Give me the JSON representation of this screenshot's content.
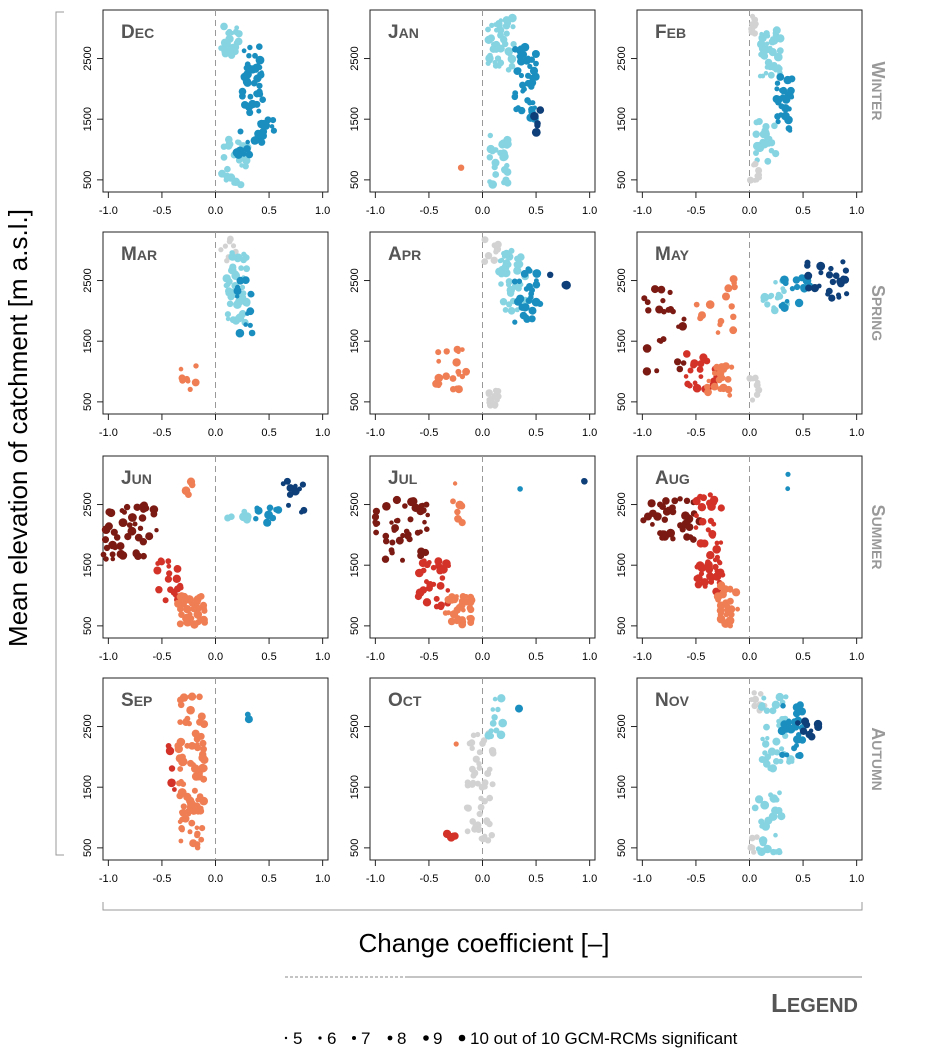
{
  "figure": {
    "ylabel": "Mean elevation of catchment [m a.s.l.]",
    "xlabel": "Change coefficient [–]",
    "xticks": [
      "-1.0",
      "-0.5",
      "0.0",
      "0.5",
      "1.0"
    ],
    "yticks": [
      "500",
      "1500",
      "2500"
    ],
    "seasons": [
      "WINTER",
      "SPRING",
      "SUMMER",
      "AUTUMN"
    ],
    "months": [
      "DEC",
      "JAN",
      "FEB",
      "MAR",
      "APR",
      "MAY",
      "JUN",
      "JUL",
      "AUG",
      "SEP",
      "OCT",
      "NOV"
    ]
  },
  "legend": {
    "title": "LEGEND",
    "counts": [
      "5",
      "6",
      "7",
      "8",
      "9"
    ],
    "last_count": "10",
    "last_label": "out of 10 GCM-RCMs significant"
  },
  "colors": {
    "dec_strong": "#7a1a12",
    "dec_mid": "#d23228",
    "dec_light": "#ef7e54",
    "inc_light": "#86d3e2",
    "inc_mid": "#1a8fbf",
    "inc_strong": "#0f3f78",
    "neutral": "#d2d2d2",
    "text_grey": "#555555",
    "season_grey": "#999999"
  },
  "chart_data": {
    "type": "scatter",
    "xlim": [
      -1.05,
      1.05
    ],
    "ylim": [
      300,
      3300
    ],
    "panels": [
      {
        "month": "DEC",
        "clusters": [
          {
            "x": [
              0.05,
              0.22
            ],
            "y": [
              2500,
              3100
            ],
            "cls": "inc_light",
            "n": 25
          },
          {
            "x": [
              0.25,
              0.45
            ],
            "y": [
              1600,
              2700
            ],
            "cls": "inc_mid",
            "n": 40
          },
          {
            "x": [
              0.35,
              0.55
            ],
            "y": [
              1300,
              1600
            ],
            "cls": "inc_mid",
            "n": 8
          },
          {
            "x": [
              0.05,
              0.3
            ],
            "y": [
              400,
              1200
            ],
            "cls": "inc_light",
            "n": 30
          },
          {
            "x": [
              0.2,
              0.45
            ],
            "y": [
              900,
              1400
            ],
            "cls": "inc_mid",
            "n": 15
          }
        ]
      },
      {
        "month": "JAN",
        "clusters": [
          {
            "x": [
              0.05,
              0.3
            ],
            "y": [
              2300,
              3200
            ],
            "cls": "inc_light",
            "n": 40
          },
          {
            "x": [
              0.3,
              0.5
            ],
            "y": [
              1500,
              2700
            ],
            "cls": "inc_mid",
            "n": 45
          },
          {
            "x": [
              0.45,
              0.55
            ],
            "y": [
              1200,
              1700
            ],
            "cls": "inc_strong",
            "n": 5
          },
          {
            "x": [
              0.05,
              0.25
            ],
            "y": [
              400,
              1300
            ],
            "cls": "inc_light",
            "n": 25
          },
          {
            "x": [
              -0.2,
              -0.18
            ],
            "y": [
              700,
              720
            ],
            "cls": "dec_light",
            "n": 1
          }
        ]
      },
      {
        "month": "FEB",
        "clusters": [
          {
            "x": [
              0.0,
              0.1
            ],
            "y": [
              2900,
              3250
            ],
            "cls": "neutral",
            "n": 10
          },
          {
            "x": [
              0.1,
              0.3
            ],
            "y": [
              2200,
              3000
            ],
            "cls": "inc_light",
            "n": 40
          },
          {
            "x": [
              0.25,
              0.4
            ],
            "y": [
              1300,
              2200
            ],
            "cls": "inc_mid",
            "n": 30
          },
          {
            "x": [
              0.05,
              0.25
            ],
            "y": [
              800,
              1500
            ],
            "cls": "inc_light",
            "n": 25
          },
          {
            "x": [
              0.0,
              0.1
            ],
            "y": [
              400,
              800
            ],
            "cls": "neutral",
            "n": 10
          }
        ]
      },
      {
        "month": "MAR",
        "clusters": [
          {
            "x": [
              0.05,
              0.2
            ],
            "y": [
              2800,
              3200
            ],
            "cls": "neutral",
            "n": 8
          },
          {
            "x": [
              0.1,
              0.3
            ],
            "y": [
              1800,
              3000
            ],
            "cls": "inc_light",
            "n": 50
          },
          {
            "x": [
              0.2,
              0.35
            ],
            "y": [
              1600,
              2600
            ],
            "cls": "inc_mid",
            "n": 15
          },
          {
            "x": [
              -0.35,
              -0.15
            ],
            "y": [
              700,
              1100
            ],
            "cls": "dec_light",
            "n": 8
          }
        ]
      },
      {
        "month": "APR",
        "clusters": [
          {
            "x": [
              0.0,
              0.15
            ],
            "y": [
              2800,
              3200
            ],
            "cls": "neutral",
            "n": 8
          },
          {
            "x": [
              0.15,
              0.4
            ],
            "y": [
              2000,
              3000
            ],
            "cls": "inc_light",
            "n": 40
          },
          {
            "x": [
              0.3,
              0.55
            ],
            "y": [
              1800,
              2700
            ],
            "cls": "inc_mid",
            "n": 30
          },
          {
            "x": [
              0.6,
              0.8
            ],
            "y": [
              2300,
              2700
            ],
            "cls": "inc_strong",
            "n": 3
          },
          {
            "x": [
              -0.45,
              -0.15
            ],
            "y": [
              700,
              1400
            ],
            "cls": "dec_light",
            "n": 20
          },
          {
            "x": [
              0.05,
              0.15
            ],
            "y": [
              400,
              700
            ],
            "cls": "neutral",
            "n": 15
          }
        ]
      },
      {
        "month": "MAY",
        "clusters": [
          {
            "x": [
              -1.0,
              -0.6
            ],
            "y": [
              1000,
              2400
            ],
            "cls": "dec_strong",
            "n": 25
          },
          {
            "x": [
              -0.6,
              -0.3
            ],
            "y": [
              700,
              1300
            ],
            "cls": "dec_mid",
            "n": 20
          },
          {
            "x": [
              -0.4,
              -0.15
            ],
            "y": [
              600,
              1100
            ],
            "cls": "dec_light",
            "n": 20
          },
          {
            "x": [
              -0.5,
              -0.1
            ],
            "y": [
              1600,
              2600
            ],
            "cls": "dec_light",
            "n": 15
          },
          {
            "x": [
              0.1,
              0.35
            ],
            "y": [
              2000,
              2500
            ],
            "cls": "inc_light",
            "n": 15
          },
          {
            "x": [
              0.3,
              0.6
            ],
            "y": [
              2000,
              2600
            ],
            "cls": "inc_mid",
            "n": 15
          },
          {
            "x": [
              0.5,
              0.95
            ],
            "y": [
              2200,
              2900
            ],
            "cls": "inc_strong",
            "n": 25
          },
          {
            "x": [
              0.0,
              0.1
            ],
            "y": [
              400,
              900
            ],
            "cls": "neutral",
            "n": 8
          }
        ]
      },
      {
        "month": "JUN",
        "clusters": [
          {
            "x": [
              -1.05,
              -0.55
            ],
            "y": [
              1600,
              2500
            ],
            "cls": "dec_strong",
            "n": 45
          },
          {
            "x": [
              -0.55,
              -0.3
            ],
            "y": [
              900,
              1600
            ],
            "cls": "dec_mid",
            "n": 25
          },
          {
            "x": [
              -0.35,
              -0.1
            ],
            "y": [
              500,
              1000
            ],
            "cls": "dec_light",
            "n": 40
          },
          {
            "x": [
              -0.3,
              -0.2
            ],
            "y": [
              2600,
              3100
            ],
            "cls": "dec_light",
            "n": 4
          },
          {
            "x": [
              0.1,
              0.3
            ],
            "y": [
              2200,
              2400
            ],
            "cls": "inc_light",
            "n": 6
          },
          {
            "x": [
              0.3,
              0.6
            ],
            "y": [
              2200,
              2450
            ],
            "cls": "inc_mid",
            "n": 10
          },
          {
            "x": [
              0.6,
              0.85
            ],
            "y": [
              2300,
              2900
            ],
            "cls": "inc_strong",
            "n": 12
          }
        ]
      },
      {
        "month": "JUL",
        "clusters": [
          {
            "x": [
              -1.05,
              -0.5
            ],
            "y": [
              1500,
              2600
            ],
            "cls": "dec_strong",
            "n": 45
          },
          {
            "x": [
              -0.6,
              -0.3
            ],
            "y": [
              800,
              1600
            ],
            "cls": "dec_mid",
            "n": 30
          },
          {
            "x": [
              -0.35,
              -0.1
            ],
            "y": [
              500,
              1000
            ],
            "cls": "dec_light",
            "n": 40
          },
          {
            "x": [
              -0.3,
              -0.15
            ],
            "y": [
              2200,
              2900
            ],
            "cls": "dec_light",
            "n": 8
          },
          {
            "x": [
              0.35,
              0.36
            ],
            "y": [
              2750,
              2760
            ],
            "cls": "inc_mid",
            "n": 1
          },
          {
            "x": [
              0.9,
              1.0
            ],
            "y": [
              2750,
              3000
            ],
            "cls": "inc_strong",
            "n": 2
          }
        ]
      },
      {
        "month": "AUG",
        "clusters": [
          {
            "x": [
              -1.0,
              -0.45
            ],
            "y": [
              1900,
              2600
            ],
            "cls": "dec_strong",
            "n": 40
          },
          {
            "x": [
              -0.5,
              -0.25
            ],
            "y": [
              1000,
              2700
            ],
            "cls": "dec_mid",
            "n": 55
          },
          {
            "x": [
              -0.3,
              -0.1
            ],
            "y": [
              500,
              1200
            ],
            "cls": "dec_light",
            "n": 30
          },
          {
            "x": [
              0.35,
              0.36
            ],
            "y": [
              2700,
              3000
            ],
            "cls": "inc_mid",
            "n": 2
          }
        ]
      },
      {
        "month": "SEP",
        "clusters": [
          {
            "x": [
              -0.35,
              -0.1
            ],
            "y": [
              500,
              3000
            ],
            "cls": "dec_light",
            "n": 90
          },
          {
            "x": [
              -0.45,
              -0.35
            ],
            "y": [
              700,
              2300
            ],
            "cls": "dec_mid",
            "n": 6
          },
          {
            "x": [
              0.25,
              0.32
            ],
            "y": [
              2600,
              2950
            ],
            "cls": "inc_mid",
            "n": 2
          }
        ]
      },
      {
        "month": "OCT",
        "clusters": [
          {
            "x": [
              -0.15,
              0.1
            ],
            "y": [
              600,
              2400
            ],
            "cls": "neutral",
            "n": 50
          },
          {
            "x": [
              0.05,
              0.2
            ],
            "y": [
              2300,
              3000
            ],
            "cls": "inc_light",
            "n": 12
          },
          {
            "x": [
              -0.35,
              -0.25
            ],
            "y": [
              650,
              800
            ],
            "cls": "dec_mid",
            "n": 5
          },
          {
            "x": [
              -0.25,
              -0.15
            ],
            "y": [
              2200,
              2300
            ],
            "cls": "dec_light",
            "n": 1
          },
          {
            "x": [
              0.3,
              0.42
            ],
            "y": [
              2700,
              2950
            ],
            "cls": "inc_mid",
            "n": 2
          }
        ]
      },
      {
        "month": "NOV",
        "clusters": [
          {
            "x": [
              0.0,
              0.15
            ],
            "y": [
              2700,
              3100
            ],
            "cls": "neutral",
            "n": 8
          },
          {
            "x": [
              0.1,
              0.4
            ],
            "y": [
              1800,
              3000
            ],
            "cls": "inc_light",
            "n": 40
          },
          {
            "x": [
              0.3,
              0.5
            ],
            "y": [
              2000,
              2900
            ],
            "cls": "inc_mid",
            "n": 30
          },
          {
            "x": [
              0.45,
              0.65
            ],
            "y": [
              2300,
              2700
            ],
            "cls": "inc_strong",
            "n": 10
          },
          {
            "x": [
              0.05,
              0.3
            ],
            "y": [
              400,
              1500
            ],
            "cls": "inc_light",
            "n": 30
          },
          {
            "x": [
              0.0,
              0.08
            ],
            "y": [
              400,
              800
            ],
            "cls": "neutral",
            "n": 6
          }
        ]
      }
    ]
  }
}
